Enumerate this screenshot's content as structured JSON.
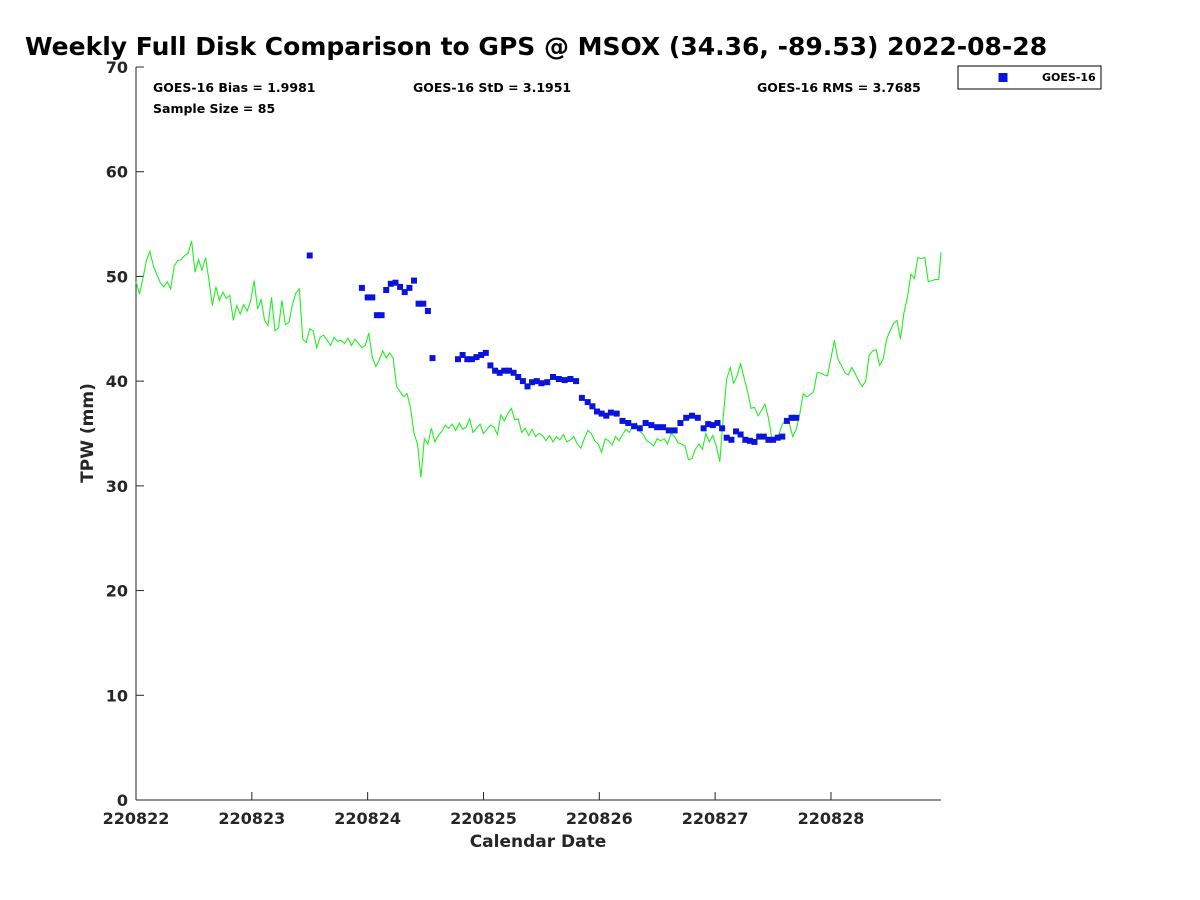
{
  "chart_data": {
    "type": "scatter",
    "title": "Weekly Full Disk Comparison to GPS @ MSOX (34.36, -89.53) 2022-08-28",
    "xlabel": "Calendar Date",
    "ylabel": "TPW (mm)",
    "ylim": [
      0,
      70
    ],
    "xlim": [
      0,
      6.95
    ],
    "yticks": [
      0,
      10,
      20,
      30,
      40,
      50,
      60,
      70
    ],
    "xticks": [
      {
        "pos": 0,
        "label": "220822"
      },
      {
        "pos": 1,
        "label": "220823"
      },
      {
        "pos": 2,
        "label": "220824"
      },
      {
        "pos": 3,
        "label": "220825"
      },
      {
        "pos": 4,
        "label": "220826"
      },
      {
        "pos": 5,
        "label": "220827"
      },
      {
        "pos": 6,
        "label": "220828"
      }
    ],
    "stats": {
      "bias": "GOES-16 Bias = 1.9981",
      "std": "GOES-16 StD = 3.1951",
      "rms": "GOES-16 RMS = 3.7685",
      "sample": "Sample Size = 85"
    },
    "legend": {
      "location": "top-right-outside",
      "entries": [
        "GOES-16"
      ]
    },
    "colors": {
      "goes": "#0a14dc",
      "gps": "#22ee22"
    },
    "series": [
      {
        "name": "GOES-16",
        "style": "markers",
        "x": [
          1.5,
          1.95,
          2.0,
          2.04,
          2.08,
          2.12,
          2.16,
          2.2,
          2.24,
          2.28,
          2.32,
          2.36,
          2.4,
          2.44,
          2.48,
          2.52,
          2.56,
          2.78,
          2.82,
          2.86,
          2.9,
          2.94,
          2.98,
          3.02,
          3.06,
          3.1,
          3.14,
          3.18,
          3.22,
          3.26,
          3.3,
          3.34,
          3.38,
          3.42,
          3.46,
          3.5,
          3.55,
          3.6,
          3.65,
          3.7,
          3.75,
          3.8,
          3.85,
          3.9,
          3.94,
          3.98,
          4.02,
          4.06,
          4.1,
          4.15,
          4.2,
          4.25,
          4.3,
          4.35,
          4.4,
          4.45,
          4.5,
          4.55,
          4.6,
          4.65,
          4.7,
          4.75,
          4.8,
          4.85,
          4.9,
          4.94,
          4.98,
          5.02,
          5.06,
          5.1,
          5.14,
          5.18,
          5.22,
          5.26,
          5.3,
          5.34,
          5.38,
          5.42,
          5.46,
          5.5,
          5.54,
          5.58,
          5.62,
          5.66,
          5.7
        ],
        "y": [
          52.0,
          48.9,
          48.0,
          48.0,
          46.3,
          46.3,
          48.7,
          49.3,
          49.4,
          49.0,
          48.5,
          48.9,
          49.6,
          47.4,
          47.4,
          46.7,
          42.2,
          42.1,
          42.5,
          42.1,
          42.1,
          42.3,
          42.5,
          42.7,
          41.5,
          41.0,
          40.8,
          41.0,
          41.0,
          40.8,
          40.4,
          40.0,
          39.5,
          39.9,
          40.0,
          39.8,
          39.9,
          40.4,
          40.2,
          40.1,
          40.2,
          40.0,
          38.4,
          38.0,
          37.6,
          37.1,
          36.9,
          36.7,
          37.0,
          36.9,
          36.2,
          36.0,
          35.7,
          35.5,
          36.0,
          35.8,
          35.6,
          35.6,
          35.3,
          35.3,
          36.0,
          36.5,
          36.7,
          36.5,
          35.5,
          35.9,
          35.8,
          36.0,
          35.5,
          34.6,
          34.4,
          35.2,
          34.9,
          34.4,
          34.3,
          34.2,
          34.7,
          34.7,
          34.4,
          34.4,
          34.6,
          34.7,
          36.2,
          36.5,
          36.5
        ]
      },
      {
        "name": "GPS",
        "style": "line",
        "x": [
          0.0,
          0.03,
          0.06,
          0.09,
          0.12,
          0.15,
          0.18,
          0.21,
          0.24,
          0.27,
          0.3,
          0.33,
          0.36,
          0.39,
          0.42,
          0.45,
          0.48,
          0.51,
          0.54,
          0.57,
          0.6,
          0.63,
          0.66,
          0.69,
          0.72,
          0.75,
          0.78,
          0.81,
          0.84,
          0.87,
          0.9,
          0.93,
          0.96,
          0.99,
          1.02,
          1.05,
          1.08,
          1.11,
          1.14,
          1.17,
          1.2,
          1.23,
          1.26,
          1.29,
          1.32,
          1.35,
          1.38,
          1.41,
          1.44,
          1.47,
          1.5,
          1.53,
          1.56,
          1.59,
          1.62,
          1.65,
          1.68,
          1.71,
          1.74,
          1.77,
          1.8,
          1.83,
          1.86,
          1.89,
          1.92,
          1.95,
          1.98,
          2.01,
          2.04,
          2.07,
          2.1,
          2.13,
          2.16,
          2.19,
          2.22,
          2.25,
          2.28,
          2.31,
          2.34,
          2.37,
          2.4,
          2.43,
          2.46,
          2.49,
          2.52,
          2.55,
          2.58,
          2.61,
          2.64,
          2.67,
          2.7,
          2.73,
          2.76,
          2.79,
          2.82,
          2.85,
          2.88,
          2.91,
          2.94,
          2.97,
          3.0,
          3.03,
          3.06,
          3.09,
          3.12,
          3.15,
          3.18,
          3.21,
          3.24,
          3.27,
          3.3,
          3.33,
          3.36,
          3.39,
          3.42,
          3.45,
          3.48,
          3.51,
          3.54,
          3.57,
          3.6,
          3.63,
          3.66,
          3.69,
          3.72,
          3.75,
          3.78,
          3.81,
          3.84,
          3.87,
          3.9,
          3.93,
          3.96,
          3.99,
          4.02,
          4.05,
          4.08,
          4.11,
          4.14,
          4.17,
          4.2,
          4.23,
          4.26,
          4.29,
          4.32,
          4.35,
          4.38,
          4.41,
          4.44,
          4.47,
          4.5,
          4.53,
          4.56,
          4.59,
          4.62,
          4.65,
          4.68,
          4.71,
          4.74,
          4.77,
          4.8,
          4.83,
          4.86,
          4.89,
          4.92,
          4.95,
          4.98,
          5.01,
          5.04,
          5.07,
          5.1,
          5.13,
          5.16,
          5.19,
          5.22,
          5.25,
          5.28,
          5.31,
          5.34,
          5.37,
          5.4,
          5.43,
          5.46,
          5.49,
          5.52,
          5.55,
          5.58,
          5.61,
          5.64,
          5.67,
          5.7,
          5.73,
          5.76,
          5.79,
          5.82,
          5.85,
          5.88,
          5.91,
          5.94,
          5.97,
          6.0,
          6.03,
          6.06,
          6.09,
          6.12,
          6.15,
          6.18,
          6.21,
          6.24,
          6.27,
          6.3,
          6.33,
          6.36,
          6.39,
          6.42,
          6.45,
          6.48,
          6.51,
          6.54,
          6.57,
          6.6,
          6.63,
          6.66,
          6.69,
          6.72,
          6.75,
          6.78,
          6.81,
          6.84,
          6.87,
          6.9,
          6.93,
          6.95
        ],
        "y": [
          49.5,
          48.3,
          49.8,
          51.5,
          52.4,
          51.0,
          50.2,
          49.4,
          49.0,
          49.5,
          48.8,
          51.0,
          51.5,
          51.6,
          52.0,
          52.2,
          53.4,
          50.4,
          51.6,
          50.6,
          51.8,
          49.6,
          47.2,
          49.0,
          47.7,
          48.5,
          47.9,
          48.2,
          45.8,
          47.2,
          46.4,
          47.3,
          46.7,
          47.7,
          49.6,
          46.9,
          47.8,
          45.8,
          45.3,
          48.0,
          44.8,
          45.1,
          47.7,
          45.4,
          45.6,
          47.3,
          48.4,
          48.8,
          44.0,
          43.7,
          45.0,
          44.8,
          43.2,
          44.2,
          44.4,
          43.9,
          43.4,
          44.2,
          43.8,
          43.9,
          43.6,
          44.1,
          43.4,
          44.0,
          43.6,
          43.2,
          43.4,
          44.6,
          42.3,
          41.4,
          42.0,
          42.9,
          42.2,
          42.7,
          42.2,
          39.5,
          39.0,
          38.5,
          38.8,
          37.5,
          35.0,
          34.0,
          30.8,
          34.5,
          34.0,
          35.5,
          34.2,
          34.8,
          35.2,
          35.8,
          35.5,
          35.9,
          35.3,
          36.0,
          35.4,
          35.6,
          36.4,
          35.1,
          35.5,
          35.9,
          35.0,
          35.4,
          35.8,
          35.6,
          34.9,
          36.8,
          36.2,
          36.9,
          37.4,
          36.3,
          36.4,
          35.1,
          35.5,
          34.8,
          35.4,
          34.7,
          35.0,
          34.8,
          34.3,
          34.8,
          34.2,
          34.7,
          34.4,
          34.9,
          34.2,
          34.4,
          34.7,
          34.0,
          33.6,
          34.5,
          35.3,
          35.0,
          34.3,
          34.0,
          33.2,
          34.5,
          34.3,
          33.9,
          34.7,
          34.3,
          34.9,
          35.4,
          35.1,
          35.8,
          36.0,
          35.2,
          34.9,
          34.3,
          34.1,
          33.8,
          34.5,
          34.3,
          34.5,
          34.0,
          35.0,
          34.7,
          34.1,
          34.0,
          33.8,
          32.5,
          32.6,
          33.5,
          34.0,
          33.5,
          35.0,
          34.2,
          34.8,
          33.8,
          32.3,
          36.5,
          40.2,
          41.3,
          39.8,
          40.5,
          41.7,
          40.3,
          39.0,
          37.4,
          37.5,
          36.7,
          37.2,
          37.8,
          36.5,
          34.5,
          34.3,
          34.9,
          35.9,
          36.3,
          36.0,
          34.7,
          35.4,
          36.8,
          38.8,
          38.5,
          38.7,
          39.0,
          40.8,
          40.8,
          40.6,
          40.5,
          42.2,
          43.9,
          42.1,
          41.5,
          40.8,
          40.6,
          41.3,
          40.7,
          40.0,
          39.5,
          40.0,
          42.5,
          42.9,
          43.0,
          41.5,
          42.1,
          44.0,
          44.8,
          45.5,
          45.8,
          44.0,
          46.5,
          48.0,
          50.2,
          49.8,
          51.8,
          51.7,
          51.8,
          49.5,
          49.6,
          49.7,
          49.7,
          52.3
        ]
      }
    ]
  }
}
